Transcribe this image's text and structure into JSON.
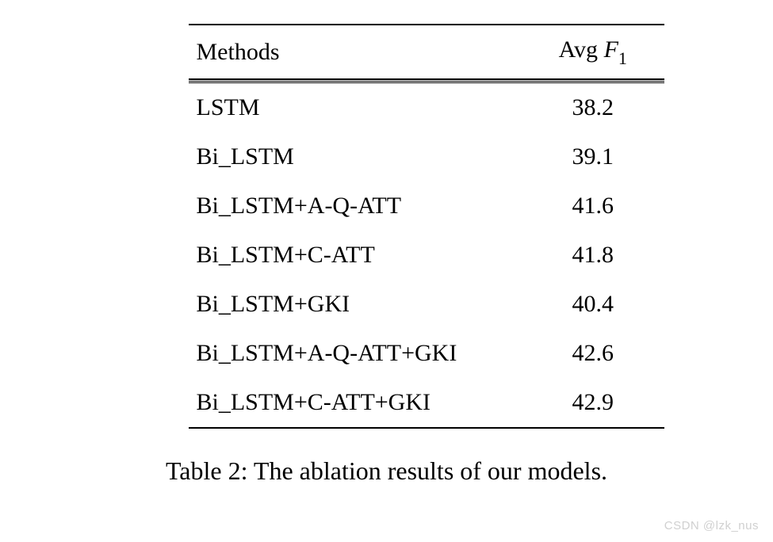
{
  "table": {
    "type": "table",
    "columns": [
      {
        "label": "Methods",
        "align": "left"
      },
      {
        "label_prefix": "Avg ",
        "label_symbol": "F",
        "label_subscript": "1",
        "align": "center"
      }
    ],
    "rows": [
      {
        "method": "LSTM",
        "value": "38.2"
      },
      {
        "method": "Bi_LSTM",
        "value": "39.1"
      },
      {
        "method": "Bi_LSTM+A-Q-ATT",
        "value": "41.6"
      },
      {
        "method": "Bi_LSTM+C-ATT",
        "value": "41.8"
      },
      {
        "method": "Bi_LSTM+GKI",
        "value": "40.4"
      },
      {
        "method": "Bi_LSTM+A-Q-ATT+GKI",
        "value": "42.6"
      },
      {
        "method": "Bi_LSTM+C-ATT+GKI",
        "value": "42.9"
      }
    ],
    "border_color": "#000000",
    "background_color": "#ffffff",
    "font_family": "Times New Roman",
    "header_fontsize": 30,
    "cell_fontsize": 30,
    "row_padding_vertical": 14
  },
  "caption": {
    "label_prefix": "Table 2:",
    "label_text": "  The ablation results of our models.",
    "fontsize": 32
  },
  "watermark": {
    "text": "CSDN @lzk_nus",
    "color": "#d0d0d0",
    "fontsize": 15
  }
}
